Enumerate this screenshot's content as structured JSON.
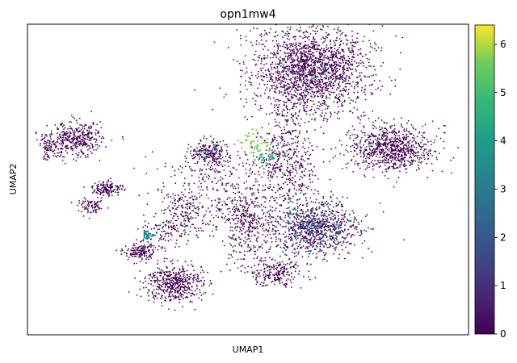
{
  "chart_data": {
    "type": "scatter",
    "title": "opn1mw4",
    "xlabel": "UMAP1",
    "ylabel": "UMAP2",
    "xlim": [
      -8,
      14
    ],
    "ylim": [
      -6,
      12
    ],
    "grid": false,
    "x_ticks_shown": false,
    "y_ticks_shown": false,
    "colormap": "viridis",
    "colorbar": {
      "min": 0,
      "max": 6.4,
      "ticks": [
        0,
        1,
        2,
        3,
        4,
        5,
        6
      ],
      "tick_labels": [
        "0",
        "1",
        "2",
        "3",
        "4",
        "5",
        "6"
      ]
    },
    "base_color": "#440154",
    "clusters": [
      {
        "cx": 6.1,
        "cy": 9.3,
        "rx": 2.6,
        "ry": 2.4,
        "n": 1900,
        "expr": 0,
        "hi_frac": 0.01
      },
      {
        "cx": 6.3,
        "cy": 0.2,
        "rx": 1.9,
        "ry": 1.4,
        "n": 900,
        "expr": 0,
        "hi_frac": 0.18,
        "hi_val": 2.7
      },
      {
        "cx": 10.2,
        "cy": 4.8,
        "rx": 1.9,
        "ry": 1.2,
        "n": 800,
        "expr": 0,
        "hi_frac": 0.02
      },
      {
        "cx": -5.6,
        "cy": 5.3,
        "rx": 1.2,
        "ry": 0.9,
        "n": 380,
        "expr": 0,
        "hi_frac": 0.0
      },
      {
        "cx": -6.9,
        "cy": 4.8,
        "rx": 0.5,
        "ry": 0.6,
        "n": 80,
        "expr": 0,
        "hi_frac": 0.0
      },
      {
        "cx": -4.0,
        "cy": 2.5,
        "rx": 0.7,
        "ry": 0.4,
        "n": 140,
        "expr": 0,
        "hi_frac": 0.0
      },
      {
        "cx": -4.8,
        "cy": 1.4,
        "rx": 0.6,
        "ry": 0.4,
        "n": 80,
        "expr": 0,
        "hi_frac": 0.0
      },
      {
        "cx": -0.7,
        "cy": -3.0,
        "rx": 1.3,
        "ry": 1.0,
        "n": 500,
        "expr": 0,
        "hi_frac": 0.0
      },
      {
        "cx": -2.4,
        "cy": -1.2,
        "rx": 0.7,
        "ry": 0.5,
        "n": 160,
        "expr": 0,
        "hi_frac": 0.0
      },
      {
        "cx": 1.1,
        "cy": 4.5,
        "rx": 0.8,
        "ry": 0.7,
        "n": 200,
        "expr": 0,
        "hi_frac": 0.05,
        "hi_val": 3.0
      },
      {
        "cx": 5.0,
        "cy": 4.0,
        "rx": 1.3,
        "ry": 2.2,
        "n": 420,
        "expr": 0,
        "hi_frac": 0.02
      },
      {
        "cx": 2.8,
        "cy": 1.0,
        "rx": 1.3,
        "ry": 1.3,
        "n": 260,
        "expr": 0,
        "hi_frac": 0.02
      },
      {
        "cx": 4.4,
        "cy": -2.4,
        "rx": 1.2,
        "ry": 0.8,
        "n": 220,
        "expr": 0,
        "hi_frac": 0.0
      },
      {
        "cx": 0.0,
        "cy": 1.3,
        "rx": 1.3,
        "ry": 1.1,
        "n": 180,
        "expr": 0,
        "hi_frac": 0.02
      },
      {
        "cx": -0.9,
        "cy": 0.0,
        "rx": 1.2,
        "ry": 0.9,
        "n": 120,
        "expr": 0,
        "hi_frac": 0.05,
        "hi_val": 3.4
      },
      {
        "cx": 3.3,
        "cy": 5.2,
        "rx": 0.8,
        "ry": 0.6,
        "n": 40,
        "expr": 5.8,
        "hi_frac": 0.0
      },
      {
        "cx": 3.9,
        "cy": 4.3,
        "rx": 0.6,
        "ry": 0.6,
        "n": 30,
        "expr": 4.6,
        "hi_frac": 0.0
      },
      {
        "cx": -2.0,
        "cy": -0.2,
        "rx": 0.25,
        "ry": 0.25,
        "n": 28,
        "expr": 3.3,
        "hi_frac": 0.0
      },
      {
        "cx": 3.0,
        "cy": -0.4,
        "rx": 1.2,
        "ry": 1.6,
        "n": 160,
        "expr": 0,
        "hi_frac": 0.0
      },
      {
        "cx": 1.8,
        "cy": 3.2,
        "rx": 3.0,
        "ry": 1.6,
        "n": 220,
        "expr": 0,
        "hi_frac": 0.01
      }
    ]
  }
}
